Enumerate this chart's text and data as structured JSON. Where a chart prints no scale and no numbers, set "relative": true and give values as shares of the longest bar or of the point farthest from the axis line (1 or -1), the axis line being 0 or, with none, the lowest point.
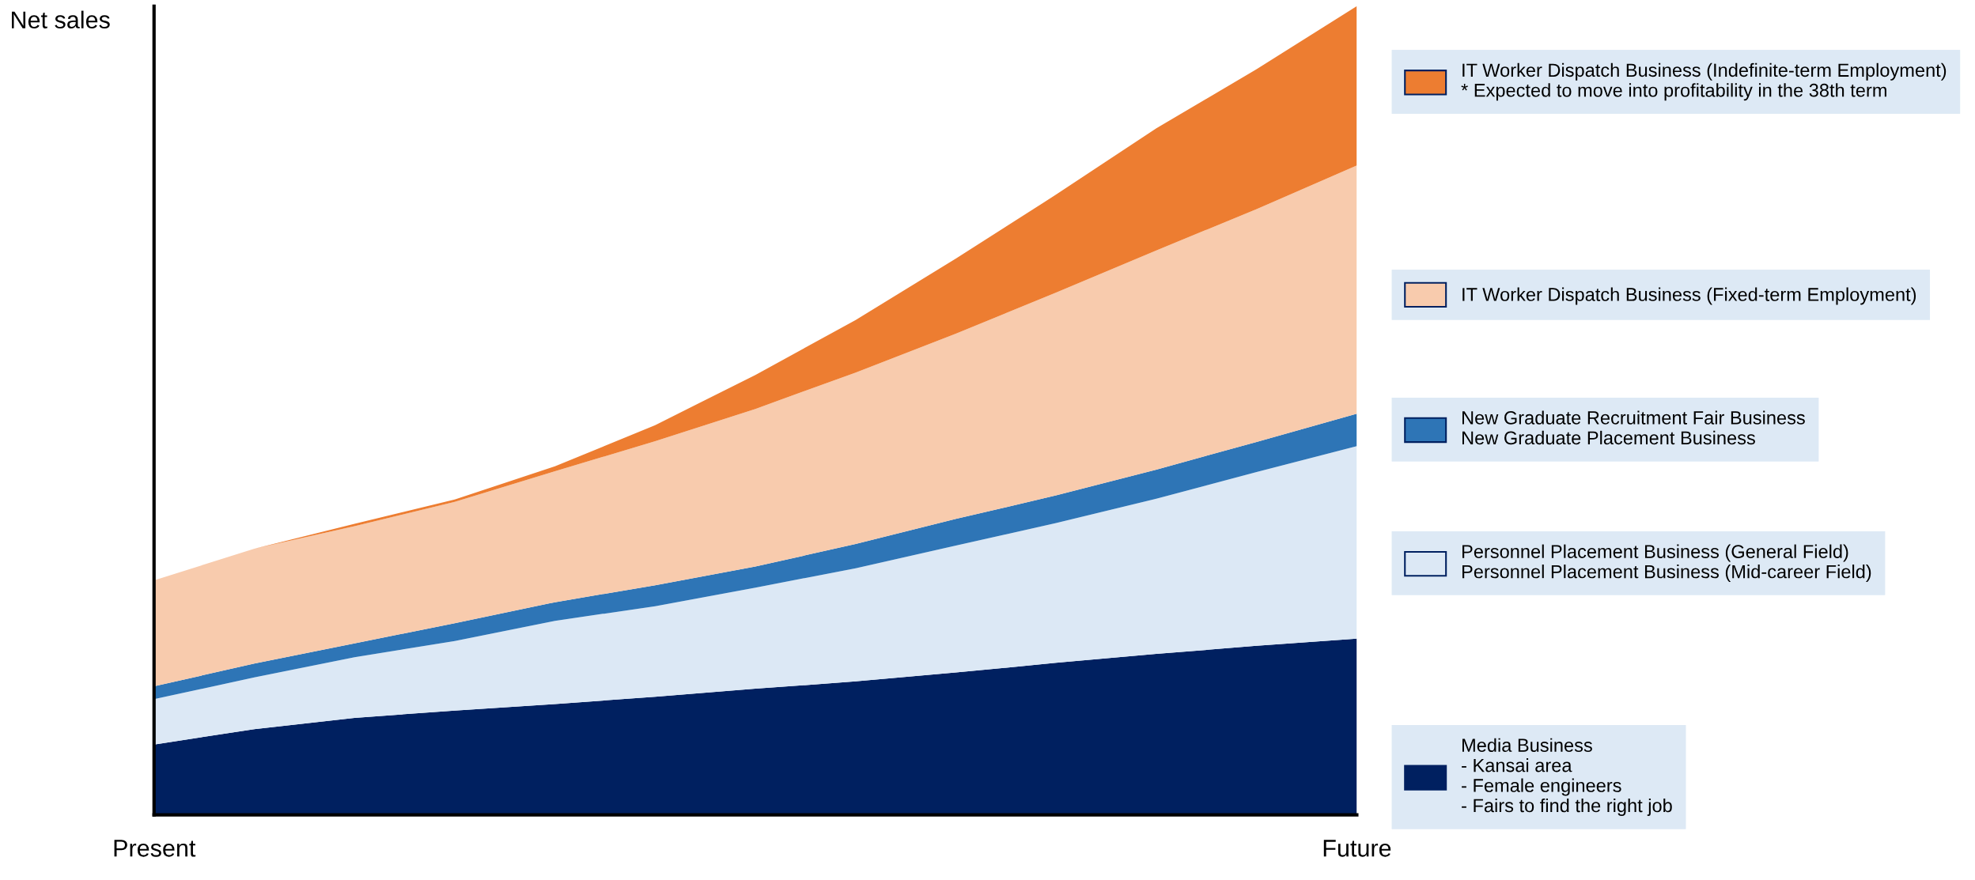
{
  "chart_data": {
    "type": "area",
    "stacked": true,
    "relative": true,
    "ylabel": "Net sales",
    "legend": "right",
    "categories": [
      "Present",
      null,
      null,
      null,
      null,
      null,
      null,
      null,
      null,
      null,
      null,
      null,
      "Future"
    ],
    "series": [
      {
        "name": "Media Business\n- Kansai area\n- Female engineers\n- Fairs to find the right job",
        "color": "#002060",
        "values": [
          0.087,
          0.106,
          0.12,
          0.129,
          0.137,
          0.146,
          0.156,
          0.165,
          0.176,
          0.188,
          0.199,
          0.209,
          0.218
        ]
      },
      {
        "name": "Personnel Placement Business (General Field)\nPersonnel Placement Business (Mid-career Field)",
        "color": "#dce8f5",
        "values": [
          0.056,
          0.064,
          0.075,
          0.086,
          0.103,
          0.112,
          0.125,
          0.14,
          0.157,
          0.173,
          0.192,
          0.215,
          0.238
        ]
      },
      {
        "name": "New Graduate Recruitment Fair Business\nNew Graduate Placement Business",
        "color": "#2e75b6",
        "values": [
          0.016,
          0.017,
          0.017,
          0.022,
          0.023,
          0.026,
          0.026,
          0.03,
          0.033,
          0.034,
          0.036,
          0.037,
          0.04
        ]
      },
      {
        "name": "IT Worker Dispatch Business (Fixed-term Employment)",
        "color": "#f8cbad",
        "values": [
          0.131,
          0.142,
          0.145,
          0.15,
          0.162,
          0.178,
          0.195,
          0.212,
          0.229,
          0.251,
          0.271,
          0.288,
          0.307
        ]
      },
      {
        "name": "IT Worker Dispatch Business (Indefinite-term Employment)\n* Expected to move into profitability in the 38th term",
        "color": "#ed7d31",
        "values": [
          0,
          0,
          0.003,
          0.003,
          0.006,
          0.02,
          0.042,
          0.065,
          0.093,
          0.121,
          0.151,
          0.173,
          0.197
        ]
      }
    ]
  }
}
